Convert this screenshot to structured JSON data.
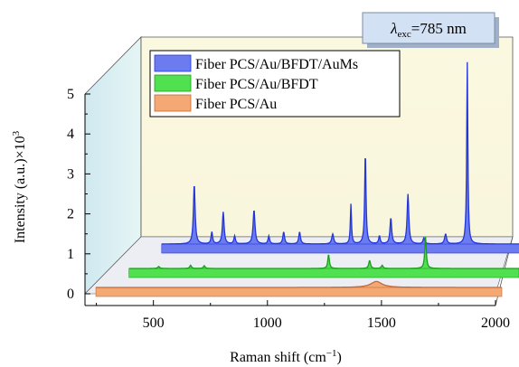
{
  "chart_data": {
    "type": "line",
    "style": "3d-waterfall",
    "annotation": {
      "symbol": "λ",
      "subscript": "exc",
      "text": "=785 nm"
    },
    "xlabel": {
      "text": "Raman shift (cm",
      "sup": "−1",
      "close": ")"
    },
    "ylabel": {
      "text": "Intensity (a.u.)×10",
      "sup": "3"
    },
    "xlim": [
      200,
      2000
    ],
    "ylim": [
      0,
      5
    ],
    "x_ticks": [
      500,
      1000,
      1500,
      2000
    ],
    "y_ticks": [
      0,
      1,
      2,
      3,
      4,
      5
    ],
    "grid": false,
    "legend_position": "top-left",
    "series": [
      {
        "name": "Fiber PCS/Au/BFDT/AuMs",
        "color": "#6c7cf0",
        "edge_color": "#2436d8",
        "baseline": 0,
        "peaks": [
          [
            473,
            1.5,
            9
          ],
          [
            550,
            0.3,
            8
          ],
          [
            600,
            0.8,
            9
          ],
          [
            650,
            0.2,
            8
          ],
          [
            735,
            0.85,
            10
          ],
          [
            800,
            0.2,
            8
          ],
          [
            865,
            0.3,
            9
          ],
          [
            935,
            0.3,
            9
          ],
          [
            1080,
            0.25,
            10
          ],
          [
            1160,
            1.0,
            6
          ],
          [
            1223,
            2.3,
            7
          ],
          [
            1285,
            0.2,
            8
          ],
          [
            1335,
            0.65,
            9
          ],
          [
            1410,
            1.25,
            9
          ],
          [
            1480,
            0.15,
            9
          ],
          [
            1575,
            0.25,
            10
          ],
          [
            1670,
            4.55,
            6
          ]
        ]
      },
      {
        "name": "Fiber PCS/Au/BFDT",
        "color": "#50e050",
        "edge_color": "#1f9a1f",
        "baseline": 0,
        "peaks": [
          [
            420,
            0.05,
            10
          ],
          [
            560,
            0.08,
            9
          ],
          [
            620,
            0.07,
            9
          ],
          [
            1165,
            0.35,
            8
          ],
          [
            1345,
            0.2,
            9
          ],
          [
            1400,
            0.08,
            9
          ],
          [
            1590,
            0.8,
            8
          ]
        ]
      },
      {
        "name": "Fiber PCS/Au",
        "color": "#f4a874",
        "edge_color": "#c06a38",
        "baseline": 0,
        "peaks": [
          [
            1450,
            0.15,
            60
          ]
        ]
      }
    ]
  }
}
